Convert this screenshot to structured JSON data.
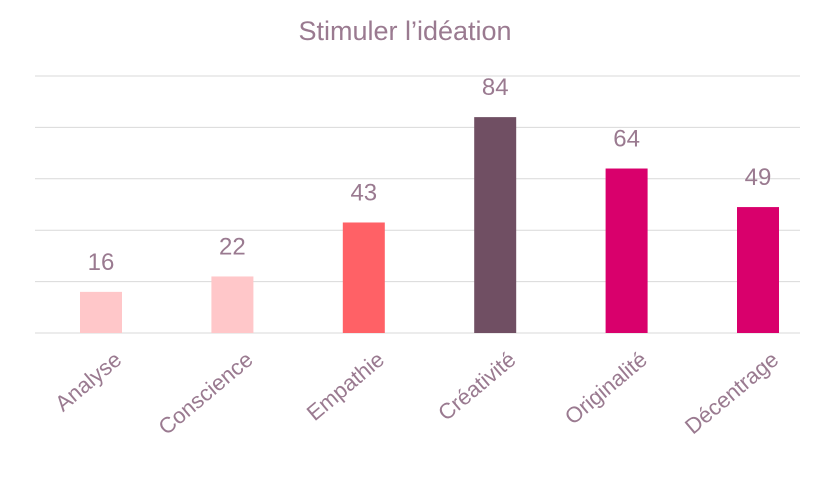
{
  "chart_data": {
    "type": "bar",
    "title": "Stimuler l’idéation",
    "categories": [
      "Analyse",
      "Conscience",
      "Empathie",
      "Créativité",
      "Originalité",
      "Décentrage"
    ],
    "values": [
      16,
      22,
      43,
      84,
      64,
      49
    ],
    "colors": [
      "#ffc7c9",
      "#ffc7c9",
      "#ff6166",
      "#704f63",
      "#d9006c",
      "#d9006c"
    ],
    "ylim": [
      0,
      100
    ],
    "yticks": [
      0,
      20,
      40,
      60,
      80,
      100
    ],
    "grid": true
  }
}
